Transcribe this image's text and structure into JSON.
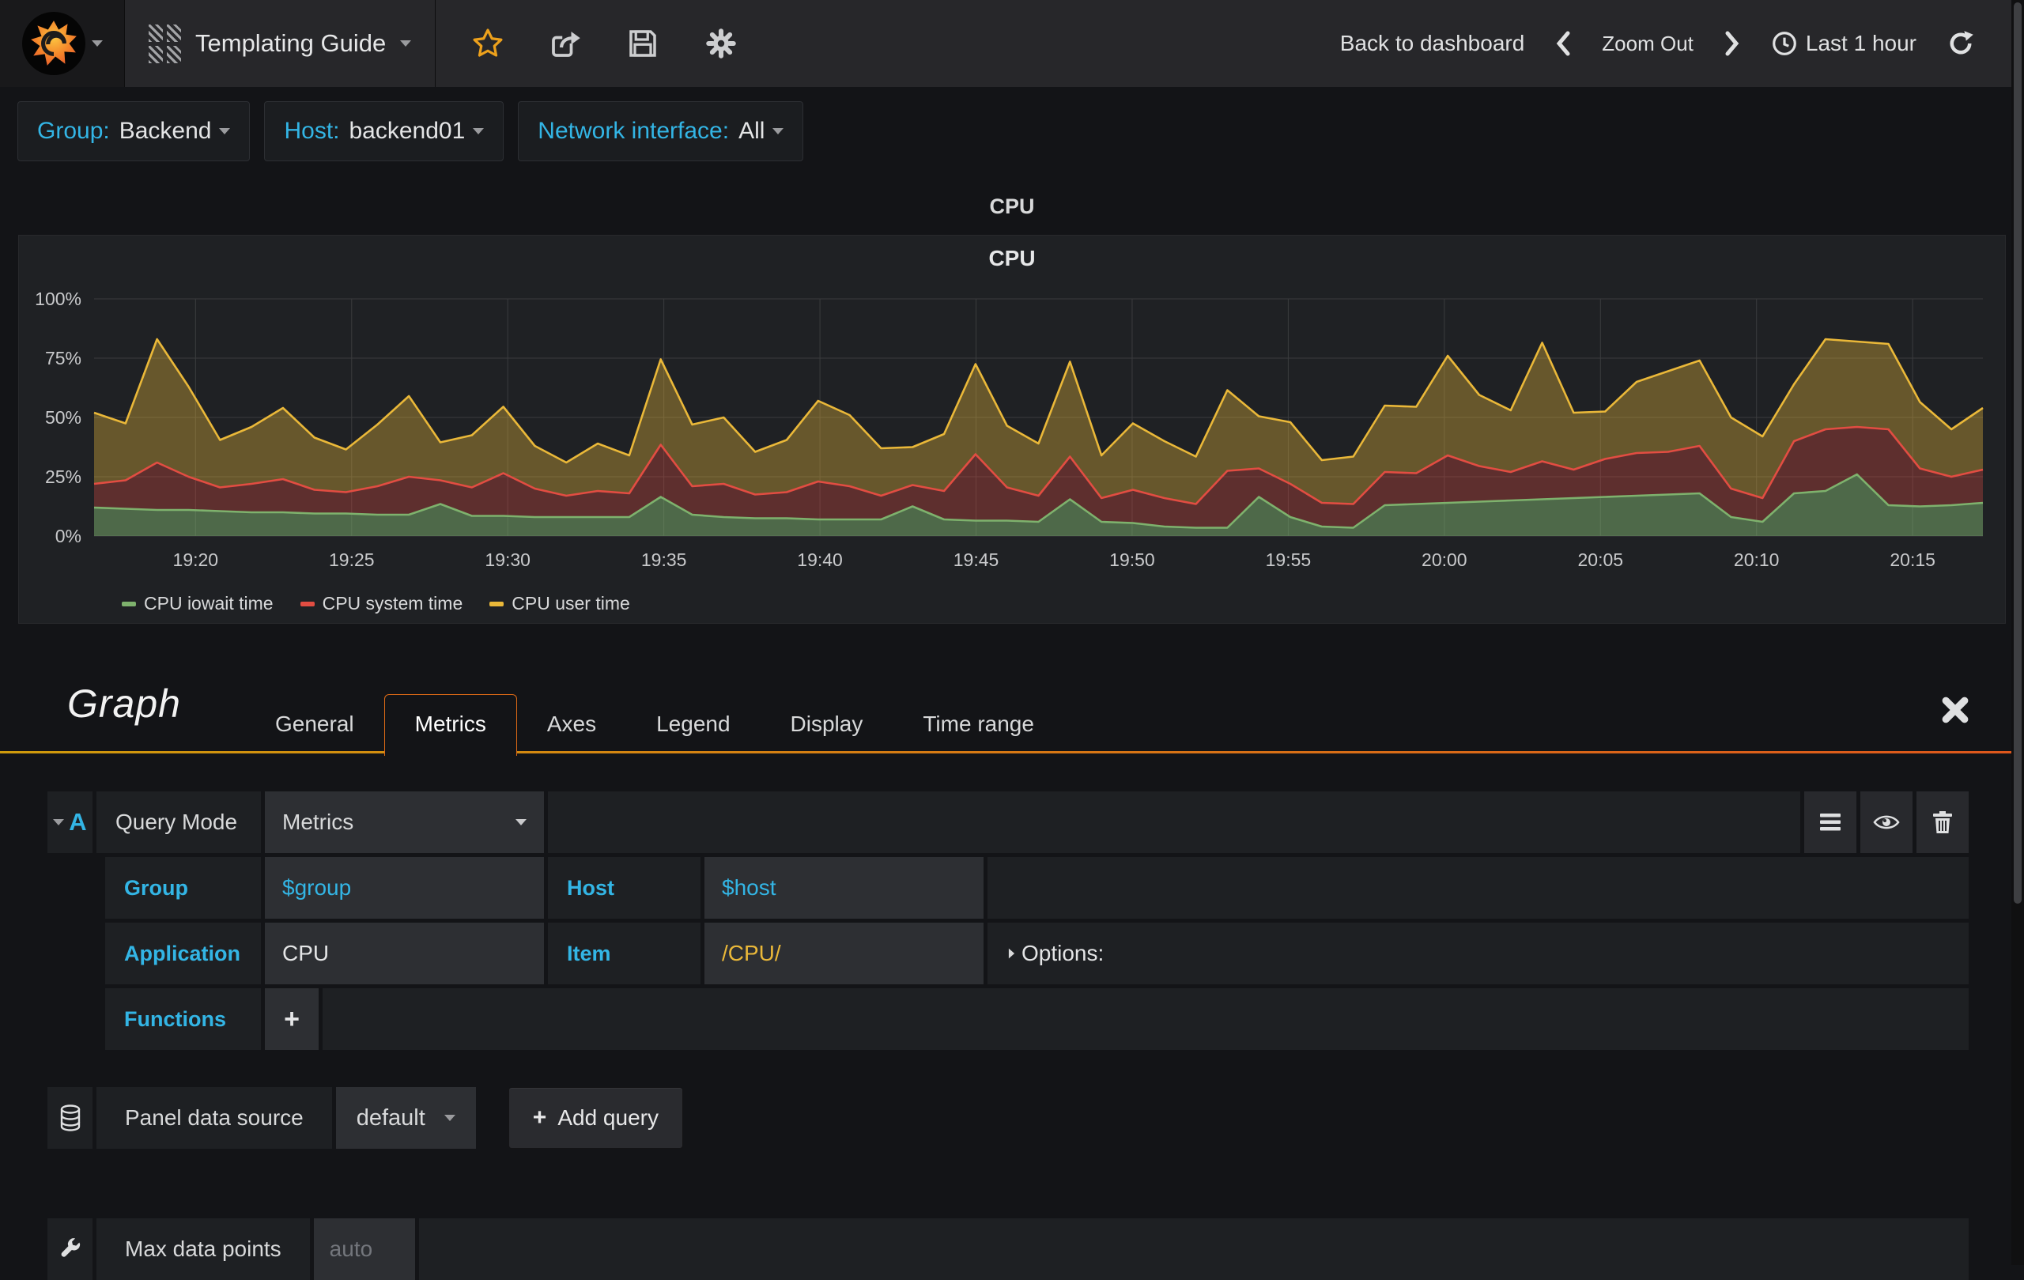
{
  "navbar": {
    "dashboard_title": "Templating Guide",
    "back_to_dashboard": "Back to dashboard",
    "zoom_out": "Zoom Out",
    "time_range": "Last 1 hour"
  },
  "icons": {
    "grafana-logo": "orange flame spiral in black circle",
    "dashboard-grid": "hatched squares",
    "favorite": "star outline",
    "share": "arrow out of square",
    "save": "floppy disk",
    "settings": "gear",
    "time-range": "clock",
    "refresh": "circular arrow",
    "query-menu": "hamburger",
    "query-visibility": "eye",
    "query-delete": "trash",
    "datasource": "database cylinder",
    "panel-settings": "wrench"
  },
  "colors": {
    "accent_blue": "#33b5e5",
    "tab_orange": "#dd6a16",
    "star_orange": "#eda11c",
    "series_green": "#7EB26D",
    "series_red": "#E24D42",
    "series_yellow": "#EAB839"
  },
  "variables": [
    {
      "label": "Group:",
      "value": "Backend"
    },
    {
      "label": "Host:",
      "value": "backend01"
    },
    {
      "label": "Network interface:",
      "value": "All"
    }
  ],
  "row_title": "CPU",
  "panel": {
    "title": "CPU"
  },
  "chart_data": {
    "type": "area",
    "stacked": true,
    "title": "CPU",
    "unit": "percent",
    "ylim": [
      0,
      100
    ],
    "grid": true,
    "legend_position": "bottom-left",
    "y_ticks": [
      "0%",
      "25%",
      "50%",
      "75%",
      "100%"
    ],
    "x_ticks": [
      "19:20",
      "19:25",
      "19:30",
      "19:35",
      "19:40",
      "19:45",
      "19:50",
      "19:55",
      "20:00",
      "20:05",
      "20:10",
      "20:15"
    ],
    "x_axis": {
      "first_tick_offset_min": 3.25,
      "tick_step_min": 5,
      "total_min": 60.5
    },
    "series": [
      {
        "name": "CPU iowait time",
        "color": "#7EB26D",
        "fill": "rgba(126,178,109,0.50)",
        "values": [
          12,
          11.5,
          11,
          11,
          10.5,
          10,
          10,
          9.5,
          9.5,
          9,
          9,
          13.5,
          8.5,
          8.5,
          8,
          8,
          8,
          8,
          16.5,
          9,
          8,
          7.5,
          7.5,
          7,
          7,
          7,
          12.5,
          7,
          6.5,
          6.5,
          6,
          15.5,
          6,
          5.5,
          4,
          3.5,
          3.5,
          16.5,
          8,
          4,
          3.5,
          13,
          13.5,
          14,
          14.5,
          15,
          15.5,
          16,
          16.5,
          17,
          17.5,
          18,
          8,
          6,
          18,
          19,
          26,
          13,
          12.5,
          13,
          14
        ]
      },
      {
        "name": "CPU system time",
        "color": "#E24D42",
        "fill": "rgba(226,77,66,0.33)",
        "values": [
          10,
          12,
          20,
          14,
          10,
          12,
          14,
          10,
          9,
          12,
          16,
          10,
          12,
          18,
          12,
          9,
          11,
          10,
          22,
          12,
          14,
          10,
          11,
          16,
          14,
          10,
          9,
          12,
          28,
          14,
          11,
          18,
          10,
          14,
          12,
          10,
          24,
          12,
          14,
          10,
          10,
          14,
          13,
          20,
          15,
          12,
          16,
          12,
          16,
          18,
          18,
          20,
          12,
          10,
          22,
          26,
          20,
          32,
          16,
          12,
          14
        ]
      },
      {
        "name": "CPU user time",
        "color": "#EAB839",
        "fill": "rgba(234,184,57,0.36)",
        "values": [
          30,
          24,
          52,
          38,
          20,
          24,
          30,
          22,
          18,
          26,
          34,
          16,
          22,
          28,
          18,
          14,
          20,
          16,
          36,
          26,
          28,
          18,
          22,
          34,
          30,
          20,
          16,
          24,
          38,
          26,
          22,
          40,
          18,
          28,
          24,
          20,
          34,
          22,
          26,
          18,
          20,
          28,
          28,
          42,
          30,
          26,
          50,
          24,
          20,
          30,
          34,
          36,
          30,
          26,
          24,
          38,
          36,
          36,
          28,
          20,
          26
        ]
      }
    ]
  },
  "editor": {
    "panel_type": "Graph",
    "tabs": [
      "General",
      "Metrics",
      "Axes",
      "Legend",
      "Display",
      "Time range"
    ],
    "active_tab": "Metrics",
    "query": {
      "letter": "A",
      "query_mode_label": "Query Mode",
      "query_mode_value": "Metrics",
      "group_label": "Group",
      "group_value": "$group",
      "host_label": "Host",
      "host_value": "$host",
      "application_label": "Application",
      "application_value": "CPU",
      "item_label": "Item",
      "item_value": "/CPU/",
      "options_label": "Options:",
      "functions_label": "Functions",
      "add_function": "+"
    },
    "datasource": {
      "label": "Panel data source",
      "value": "default",
      "add_query_plus": "+",
      "add_query": "Add query"
    },
    "max_data_points": {
      "label": "Max data points",
      "placeholder": "auto"
    }
  }
}
